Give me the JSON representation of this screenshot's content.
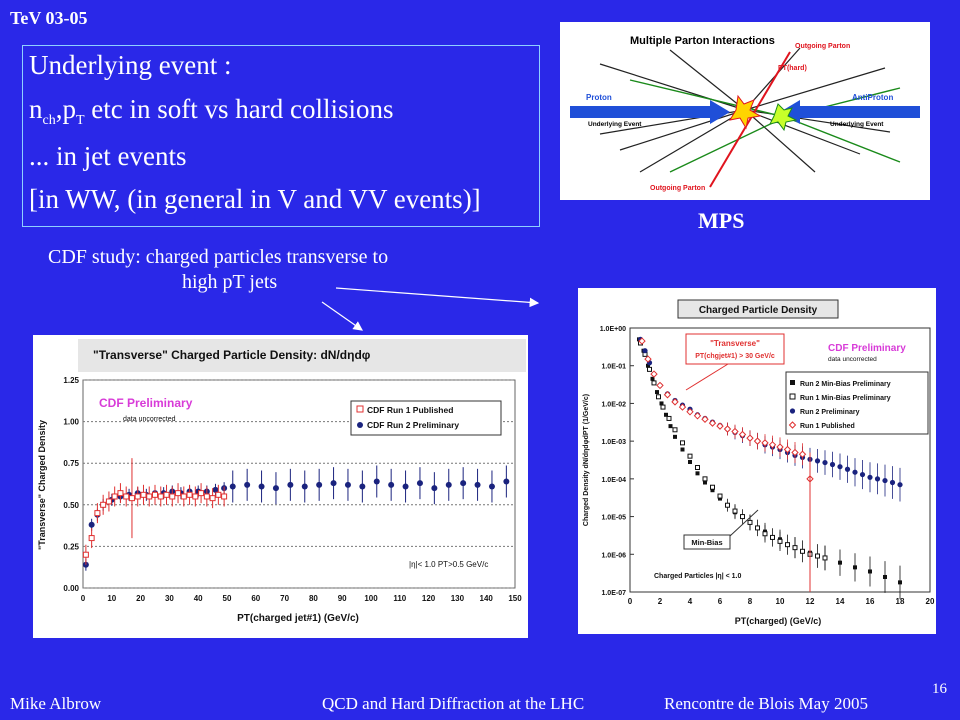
{
  "slide": {
    "corner_label": "TeV 03-05",
    "bullets": [
      "Underlying event :",
      "etc in soft vs hard collisions",
      "... in jet events",
      "[in WW, (in general in V and VV events)]"
    ],
    "bullet2_nch": "n",
    "bullet2_nch_sub": "ch",
    "bullet2_pt": ",p",
    "bullet2_pt_sub": "T",
    "mps_label": "MPS",
    "caption_line1": "CDF study: charged particles transverse to",
    "caption_line2": "high pT jets",
    "page_number": "16"
  },
  "footer": {
    "author": "Mike Albrow",
    "title": "QCD and Hard Diffraction at the LHC",
    "venue": "Rencontre de Blois May 2005"
  },
  "mps_diagram": {
    "title": "Multiple Parton Interactions",
    "outgoing_top": "Outgoing Parton",
    "pt_hard": "PT(hard)",
    "proton": "Proton",
    "antiproton": "AntiProton",
    "ue_left": "Underlying Event",
    "ue_right": "Underlying Event",
    "outgoing_bottom": "Outgoing Parton",
    "colors": {
      "proton_arrow": "#1f4fd8",
      "outgoing": "#e0141e",
      "tracks_green": "#1a8a1a"
    }
  },
  "chart_data": [
    {
      "type": "scatter",
      "title": "\"Transverse\" Charged Particle Density: dN/dηdφ",
      "xlabel": "PT(charged jet#1)  (GeV/c)",
      "ylabel": "\"Transverse\" Charged Density",
      "xlim": [
        0,
        150
      ],
      "ylim": [
        0,
        1.25
      ],
      "xticks": [
        "0",
        "10",
        "20",
        "30",
        "40",
        "50",
        "60",
        "70",
        "80",
        "90",
        "100",
        "110",
        "120",
        "130",
        "140",
        "150"
      ],
      "yticks": [
        "0.00",
        "0.25",
        "0.50",
        "0.75",
        "1.00",
        "1.25"
      ],
      "grid": "horizontal-dotted",
      "legend": "top-right",
      "annotations": [
        "CDF Preliminary",
        "data uncorrected",
        "|η|< 1.0 PT>0.5 GeV/c"
      ],
      "series": [
        {
          "name": "CDF Run 1 Published",
          "color": "#e03030",
          "marker": "open-square",
          "x": [
            1,
            3,
            5,
            7,
            9,
            11,
            13,
            15,
            17,
            19,
            21,
            23,
            25,
            27,
            29,
            31,
            33,
            35,
            37,
            39,
            41,
            43,
            45,
            47,
            49
          ],
          "y": [
            0.2,
            0.3,
            0.45,
            0.5,
            0.52,
            0.55,
            0.57,
            0.55,
            0.54,
            0.55,
            0.56,
            0.55,
            0.56,
            0.55,
            0.56,
            0.55,
            0.57,
            0.55,
            0.56,
            0.55,
            0.57,
            0.55,
            0.54,
            0.56,
            0.55
          ]
        },
        {
          "name": "CDF Run 2 Preliminary",
          "color": "#1a237e",
          "marker": "filled-circle",
          "x": [
            1,
            3,
            5,
            7,
            10,
            13,
            16,
            19,
            22,
            25,
            28,
            31,
            34,
            37,
            40,
            43,
            46,
            49,
            52,
            57,
            62,
            67,
            72,
            77,
            82,
            87,
            92,
            97,
            102,
            107,
            112,
            117,
            122,
            127,
            132,
            137,
            142,
            147
          ],
          "y": [
            0.14,
            0.38,
            0.44,
            0.5,
            0.53,
            0.55,
            0.56,
            0.57,
            0.56,
            0.57,
            0.57,
            0.58,
            0.57,
            0.58,
            0.58,
            0.58,
            0.59,
            0.6,
            0.61,
            0.62,
            0.61,
            0.6,
            0.62,
            0.61,
            0.62,
            0.63,
            0.62,
            0.61,
            0.64,
            0.62,
            0.61,
            0.63,
            0.6,
            0.62,
            0.63,
            0.62,
            0.61,
            0.64
          ]
        }
      ]
    },
    {
      "type": "scatter",
      "title": "Charged Particle Density",
      "xlabel": "PT(charged)  (GeV/c)",
      "ylabel": "Charged Density dN/dηdφdPT (1/GeV/c)",
      "xlim": [
        0,
        20
      ],
      "ylim": [
        1e-07,
        1
      ],
      "yscale": "log",
      "xticks": [
        "0",
        "2",
        "4",
        "6",
        "8",
        "10",
        "12",
        "14",
        "16",
        "18",
        "20"
      ],
      "yticks": [
        "1.0E-07",
        "1.0E-06",
        "1.0E-05",
        "1.0E-04",
        "1.0E-03",
        "1.0E-02",
        "1.0E-01",
        "1.0E+00"
      ],
      "legend": "right",
      "annotations": [
        "\"Transverse\"",
        "PT(chgjet#1) > 30 GeV/c",
        "CDF Preliminary",
        "data uncorrected",
        "Min-Bias",
        "Charged Particles |η| < 1.0"
      ],
      "series": [
        {
          "name": "Run 2 Min-Bias Preliminary",
          "color": "#111111",
          "marker": "filled-square",
          "x": [
            0.6,
            0.9,
            1.2,
            1.5,
            1.8,
            2.1,
            2.4,
            2.7,
            3.0,
            3.5,
            4.0,
            4.5,
            5.0,
            5.5,
            6.0,
            7.0,
            8.0,
            9.0,
            10.0,
            11.0,
            12.0,
            13.0,
            14.0,
            15.0,
            16.0,
            17.0,
            18.0
          ],
          "y": [
            0.5,
            0.25,
            0.1,
            0.045,
            0.02,
            0.01,
            0.005,
            0.0025,
            0.0013,
            0.0006,
            0.00028,
            0.00014,
            8e-05,
            5e-05,
            3e-05,
            1.3e-05,
            7e-06,
            4e-06,
            2.5e-06,
            1.5e-06,
            1.1e-06,
            8e-07,
            6e-07,
            4.5e-07,
            3.5e-07,
            2.5e-07,
            1.8e-07
          ]
        },
        {
          "name": "Run 1 Min-Bias Preliminary",
          "color": "#111111",
          "marker": "open-square",
          "x": [
            0.7,
            1.0,
            1.3,
            1.6,
            1.9,
            2.2,
            2.6,
            3.0,
            3.5,
            4.0,
            4.5,
            5.0,
            5.5,
            6.0,
            6.5,
            7.0,
            7.5,
            8.0,
            8.5,
            9.0,
            9.5,
            10.0,
            10.5,
            11.0,
            11.5,
            12.0,
            12.5,
            13.0
          ],
          "y": [
            0.4,
            0.2,
            0.08,
            0.035,
            0.015,
            0.008,
            0.004,
            0.002,
            0.0009,
            0.0004,
            0.0002,
            0.0001,
            6e-05,
            3.5e-05,
            2e-05,
            1.4e-05,
            1e-05,
            7e-06,
            5e-06,
            3.5e-06,
            2.8e-06,
            2.2e-06,
            1.8e-06,
            1.5e-06,
            1.2e-06,
            1e-06,
            9e-07,
            8e-07
          ]
        },
        {
          "name": "Run 2 Preliminary",
          "color": "#1a237e",
          "marker": "filled-circle",
          "x": [
            0.7,
            1.0,
            1.3,
            1.6,
            2.0,
            2.5,
            3.0,
            3.5,
            4.0,
            4.5,
            5.0,
            5.5,
            6.0,
            6.5,
            7.0,
            7.5,
            8.0,
            8.5,
            9.0,
            9.5,
            10.0,
            10.5,
            11.0,
            11.5,
            12.0,
            12.5,
            13.0,
            13.5,
            14.0,
            14.5,
            15.0,
            15.5,
            16.0,
            16.5,
            17.0,
            17.5,
            18.0
          ],
          "y": [
            0.5,
            0.25,
            0.12,
            0.06,
            0.03,
            0.018,
            0.012,
            0.009,
            0.007,
            0.005,
            0.004,
            0.0032,
            0.0026,
            0.0021,
            0.0017,
            0.0014,
            0.0012,
            0.001,
            0.0008,
            0.0007,
            0.0006,
            0.0005,
            0.00042,
            0.00037,
            0.00033,
            0.0003,
            0.00027,
            0.00024,
            0.00021,
            0.00018,
            0.00015,
            0.00013,
            0.00011,
            0.0001,
            9e-05,
            8e-05,
            7e-05
          ]
        },
        {
          "name": "Run 1 Published",
          "color": "#e03030",
          "marker": "open-diamond",
          "x": [
            0.8,
            1.2,
            1.6,
            2.0,
            2.5,
            3.0,
            3.5,
            4.0,
            4.5,
            5.0,
            5.5,
            6.0,
            6.5,
            7.0,
            7.5,
            8.0,
            8.5,
            9.0,
            9.5,
            10.0,
            10.5,
            11.0,
            11.5,
            12.0
          ],
          "y": [
            0.45,
            0.15,
            0.06,
            0.03,
            0.017,
            0.011,
            0.008,
            0.006,
            0.0047,
            0.0038,
            0.003,
            0.0025,
            0.0021,
            0.0018,
            0.0015,
            0.0012,
            0.001,
            0.0009,
            0.0008,
            0.0007,
            0.0006,
            0.0005,
            0.00045,
            0.0001
          ]
        }
      ]
    }
  ]
}
